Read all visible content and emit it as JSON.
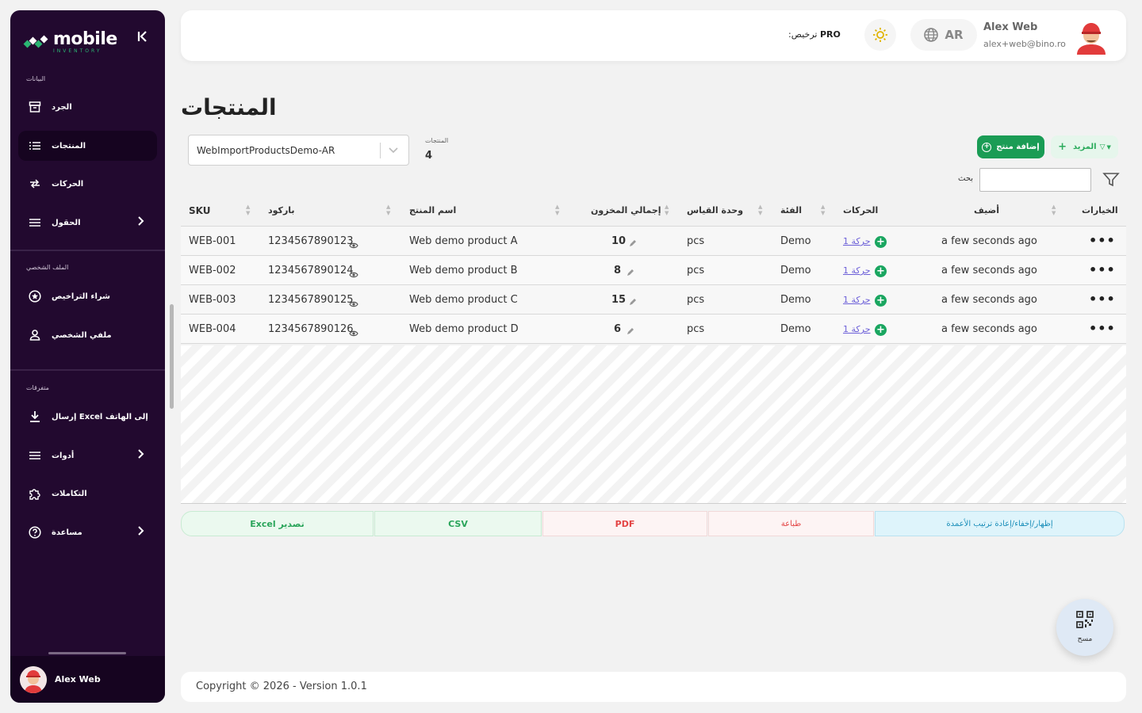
{
  "sidebar": {
    "logo": {
      "name": "mobile",
      "tagline": "INVENTORY"
    },
    "sections": [
      {
        "label": "البيانات"
      },
      {
        "label": "الملف الشخصي"
      },
      {
        "label": "متفرقات"
      }
    ],
    "items": [
      {
        "label": "الجرد",
        "icon": "archive-icon"
      },
      {
        "label": "المنتجات",
        "icon": "list-icon",
        "active": true
      },
      {
        "label": "الحركات",
        "icon": "arrows-icon"
      },
      {
        "label": "الحقول",
        "icon": "menu-icon"
      },
      {
        "label": "شراء التراخيص",
        "icon": "star-badge-icon"
      },
      {
        "label": "ملفي الشخصي",
        "icon": "user-icon"
      },
      {
        "label": "إرسال Excel إلى الهاتف",
        "icon": "download-icon"
      },
      {
        "label": "أدوات",
        "icon": "menu-icon"
      },
      {
        "label": "التكاملات",
        "icon": "puzzle-icon"
      },
      {
        "label": "مساعدة",
        "icon": "help-icon"
      }
    ],
    "user_name": "Alex Web"
  },
  "header": {
    "license_label": ":ترخيص",
    "license_value": "PRO",
    "language": "AR",
    "user_name": "Alex Web",
    "user_email": "alex+web@bino.ro"
  },
  "page": {
    "title": "المنتجات",
    "inventory_select": "WebImportProductsDemo-AR",
    "products_count_label": "المنتجات",
    "products_count": "4",
    "more_button": "المزيد",
    "add_button": "إضافة منتج",
    "search_label": "بحث"
  },
  "table": {
    "columns": [
      "SKU",
      "باركود",
      "اسم المنتج",
      "إجمالي المخزون",
      "وحدة القياس",
      "الفئة",
      "الحركات",
      "أضيف",
      "الخيارات"
    ],
    "rows": [
      {
        "sku": "WEB-001",
        "barcode": "1234567890123",
        "name": "Web demo product A",
        "stock": "10",
        "unit": "pcs",
        "category": "Demo",
        "movements": "1 حركة",
        "added": "a few seconds ago"
      },
      {
        "sku": "WEB-002",
        "barcode": "1234567890124",
        "name": "Web demo product B",
        "stock": "8",
        "unit": "pcs",
        "category": "Demo",
        "movements": "1 حركة",
        "added": "a few seconds ago"
      },
      {
        "sku": "WEB-003",
        "barcode": "1234567890125",
        "name": "Web demo product C",
        "stock": "15",
        "unit": "pcs",
        "category": "Demo",
        "movements": "1 حركة",
        "added": "a few seconds ago"
      },
      {
        "sku": "WEB-004",
        "barcode": "1234567890126",
        "name": "Web demo product D",
        "stock": "6",
        "unit": "pcs",
        "category": "Demo",
        "movements": "1 حركة",
        "added": "a few seconds ago"
      }
    ]
  },
  "export": {
    "excel": "Excel تصدير",
    "csv": "CSV",
    "pdf": "PDF",
    "print": "طباعة",
    "columns": "إظهار/إخفاء/إعادة ترتيب الأعمدة"
  },
  "footer": {
    "copyright": "Copyright © 2026 - Version 1.0.1"
  },
  "fab": {
    "label": "مسح"
  },
  "colors": {
    "sidebar": "#22092f",
    "accent_green": "#1a9c55",
    "link": "#6c5fd8",
    "danger": "#e34444",
    "info": "#1c8fba"
  }
}
